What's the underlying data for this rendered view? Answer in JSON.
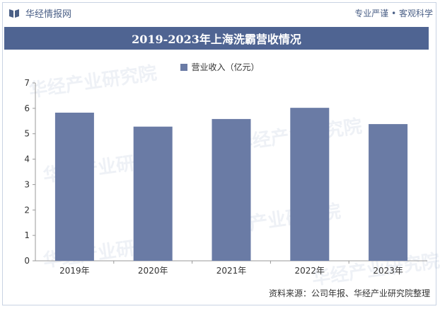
{
  "header": {
    "brand_name": "华经情报网",
    "tagline": "专业严谨 • 客观科学"
  },
  "chart_data": {
    "type": "bar",
    "title": "2019-2023年上海洗霸营收情况",
    "categories": [
      "2019年",
      "2020年",
      "2021年",
      "2022年",
      "2023年"
    ],
    "series": [
      {
        "name": "营业收入（亿元）",
        "values": [
          5.83,
          5.28,
          5.58,
          6.02,
          5.38
        ],
        "color": "#6a7ba5"
      }
    ],
    "ylim": [
      0,
      7
    ],
    "yticks": [
      "0",
      "1",
      "2",
      "3",
      "4",
      "5",
      "6",
      "7"
    ],
    "legend_position": "top-center",
    "grid": false
  },
  "footer": {
    "source": "资料来源：公司年报、华经产业研究院整理"
  },
  "watermark_text": "华经产业研究院"
}
